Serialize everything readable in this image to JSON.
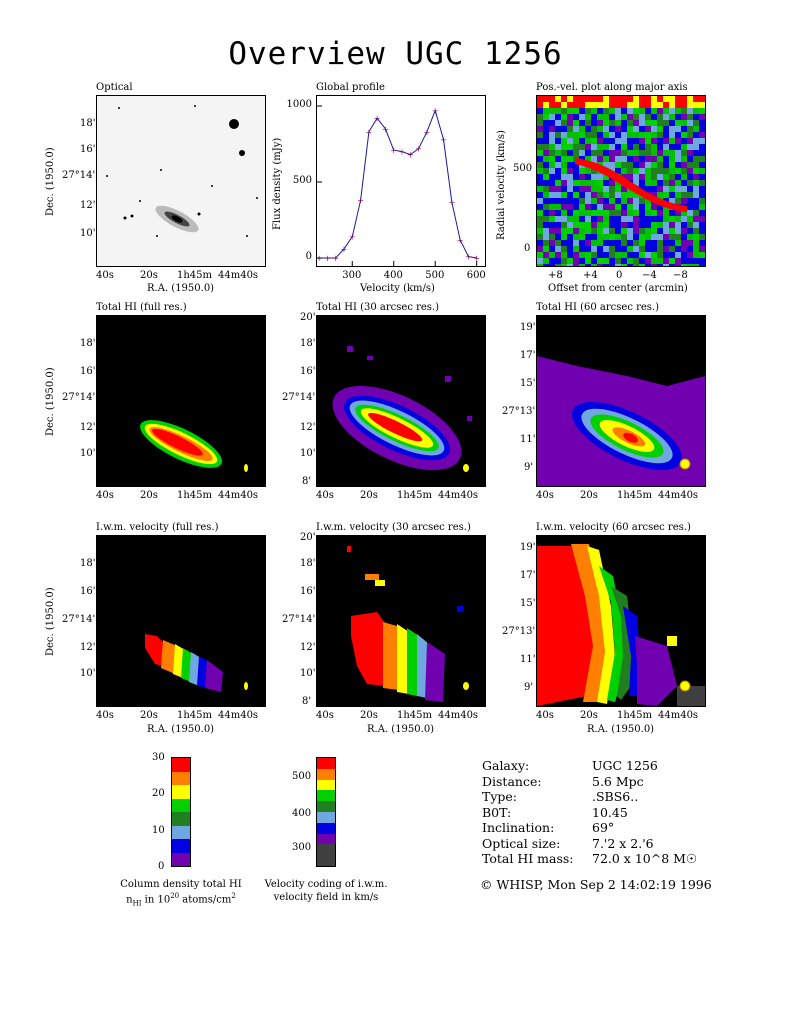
{
  "title": "Overview UGC 1256",
  "panels": {
    "optical": {
      "title": "Optical",
      "xlabel": "R.A. (1950.0)",
      "ylabel": "Dec. (1950.0)"
    },
    "profile": {
      "title": "Global profile",
      "xlabel": "Velocity (km/s)",
      "ylabel": "Flux density (mJy)"
    },
    "pv": {
      "title": "Pos.-vel. plot along major axis",
      "xlabel": "Offset from center (arcmin)",
      "ylabel": "Radial velocity (km/s)"
    },
    "hi_full": {
      "title": "Total HI (full res.)",
      "ylabel": "Dec. (1950.0)"
    },
    "hi_30": {
      "title": "Total HI (30 arcsec res.)"
    },
    "hi_60": {
      "title": "Total HI (60 arcsec res.)"
    },
    "vel_full": {
      "title": "I.w.m. velocity (full res.)",
      "xlabel": "R.A. (1950.0)",
      "ylabel": "Dec. (1950.0)"
    },
    "vel_30": {
      "title": "I.w.m. velocity (30 arcsec res.)",
      "xlabel": "R.A. (1950.0)"
    },
    "vel_60": {
      "title": "I.w.m. velocity (60 arcsec res.)",
      "xlabel": "R.A. (1950.0)"
    }
  },
  "ra_ticks": [
    "40s",
    "20s",
    "1h45m",
    "44m40s"
  ],
  "dec_ticks_a": [
    "18'",
    "16'",
    "27°14'",
    "12'",
    "10'"
  ],
  "dec_ticks_b": [
    "20'",
    "18'",
    "16'",
    "27°14'",
    "12'",
    "10'",
    "8'"
  ],
  "dec_ticks_c": [
    "19'",
    "17'",
    "15'",
    "27°13'",
    "11'",
    "9'"
  ],
  "colorbars": {
    "column_density": {
      "ticks": [
        "30",
        "20",
        "10",
        "0"
      ],
      "caption_line1": "Column density total HI",
      "caption_line2": "n_HI in 10^20 atoms/cm^2",
      "colors": [
        "#ff0000",
        "#ff8000",
        "#ffff00",
        "#00d000",
        "#208020",
        "#6fa8e0",
        "#0000e0",
        "#7000b0"
      ]
    },
    "velocity": {
      "ticks": [
        "500",
        "400",
        "300"
      ],
      "caption_line1": "Velocity coding of i.w.m.",
      "caption_line2": "velocity field in km/s",
      "colors": [
        "#ff0000",
        "#ff8000",
        "#ffff00",
        "#00d000",
        "#208020",
        "#6fa8e0",
        "#0000e0",
        "#7000b0",
        "#404040",
        "#404040"
      ]
    }
  },
  "galaxy_info": [
    {
      "label": "Galaxy:",
      "value": "UGC 1256"
    },
    {
      "label": "Distance:",
      "value": "5.6 Mpc"
    },
    {
      "label": "Type:",
      "value": ".SBS6.."
    },
    {
      "label": "B0T:",
      "value": "10.45"
    },
    {
      "label": "Inclination:",
      "value": "69°"
    },
    {
      "label": "Optical size:",
      "value": "7.'2 x 2.'6"
    },
    {
      "label": "Total HI mass:",
      "value": "72.0 x 10^8 M☉"
    }
  ],
  "footer": "© WHISP, Mon Sep  2 14:02:19 1996",
  "chart_data": {
    "type": "line",
    "title": "Global profile",
    "xlabel": "Velocity (km/s)",
    "ylabel": "Flux density (mJy)",
    "xlim": [
      215,
      620
    ],
    "ylim": [
      0,
      1000
    ],
    "x": [
      220,
      240,
      260,
      280,
      300,
      320,
      340,
      360,
      380,
      400,
      420,
      440,
      460,
      480,
      500,
      520,
      540,
      560,
      580,
      600
    ],
    "series": [
      {
        "values": [
          0,
          0,
          0,
          60,
          140,
          380,
          830,
          920,
          850,
          710,
          700,
          680,
          720,
          830,
          970,
          780,
          370,
          120,
          10,
          0
        ]
      }
    ],
    "xticks": [
      "300",
      "400",
      "500",
      "600"
    ],
    "yticks": [
      "0",
      "500",
      "1000"
    ]
  }
}
